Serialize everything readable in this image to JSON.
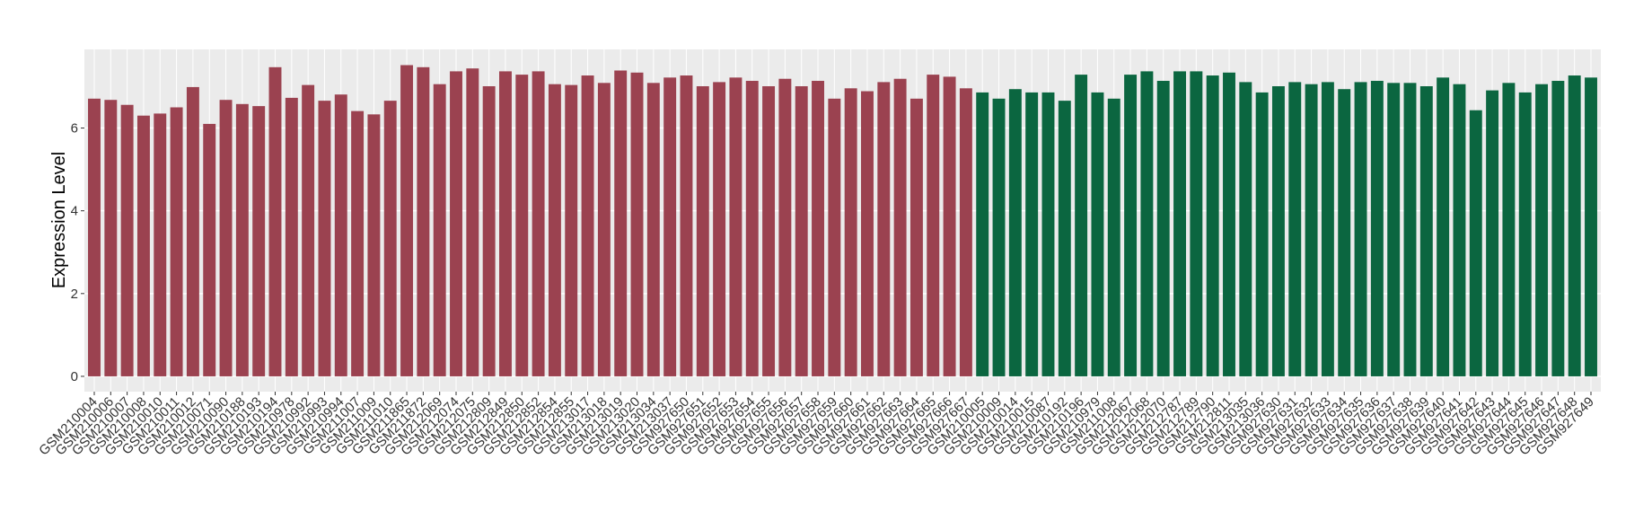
{
  "chart_data": {
    "type": "bar",
    "y_label": "Expression Level",
    "ylim": [
      -0.37,
      7.9
    ],
    "yticks": [
      0,
      2,
      4,
      6
    ],
    "grid": true,
    "series": [
      {
        "color": "#9b4250",
        "categories": [
          "GSM210004",
          "GSM210006",
          "GSM210007",
          "GSM210008",
          "GSM210010",
          "GSM210011",
          "GSM210012",
          "GSM210071",
          "GSM210090",
          "GSM210188",
          "GSM210193",
          "GSM210194",
          "GSM210978",
          "GSM210992",
          "GSM210993",
          "GSM210994",
          "GSM211007",
          "GSM211009",
          "GSM211010",
          "GSM211865",
          "GSM211872",
          "GSM212069",
          "GSM212074",
          "GSM212075",
          "GSM212809",
          "GSM212849",
          "GSM212850",
          "GSM212852",
          "GSM212854",
          "GSM212855",
          "GSM213017",
          "GSM213018",
          "GSM213019",
          "GSM213020",
          "GSM213034",
          "GSM213037",
          "GSM927650",
          "GSM927651",
          "GSM927652",
          "GSM927653",
          "GSM927654",
          "GSM927655",
          "GSM927656",
          "GSM927657",
          "GSM927658",
          "GSM927659",
          "GSM927660",
          "GSM927661",
          "GSM927662",
          "GSM927663",
          "GSM927664",
          "GSM927665",
          "GSM927666",
          "GSM927667"
        ],
        "values": [
          6.71,
          6.68,
          6.56,
          6.3,
          6.35,
          6.5,
          6.99,
          6.1,
          6.68,
          6.58,
          6.53,
          7.47,
          6.73,
          7.04,
          6.66,
          6.81,
          6.41,
          6.33,
          6.66,
          7.52,
          7.47,
          7.06,
          7.37,
          7.44,
          7.01,
          7.37,
          7.29,
          7.37,
          7.06,
          7.04,
          7.27,
          7.09,
          7.39,
          7.34,
          7.09,
          7.22,
          7.27,
          7.01,
          7.11,
          7.22,
          7.14,
          7.01,
          7.19,
          7.01,
          7.14,
          6.71,
          6.96,
          6.89,
          7.11,
          7.19,
          6.71,
          7.29,
          7.24,
          6.96
        ]
      },
      {
        "color": "#0b6640",
        "categories": [
          "GSM210005",
          "GSM210009",
          "GSM210014",
          "GSM210015",
          "GSM210087",
          "GSM210192",
          "GSM210196",
          "GSM210979",
          "GSM211008",
          "GSM212067",
          "GSM212068",
          "GSM212070",
          "GSM212787",
          "GSM212789",
          "GSM212790",
          "GSM212811",
          "GSM213035",
          "GSM213036",
          "GSM927630",
          "GSM927631",
          "GSM927632",
          "GSM927633",
          "GSM927634",
          "GSM927635",
          "GSM927636",
          "GSM927637",
          "GSM927638",
          "GSM927639",
          "GSM927640",
          "GSM927641",
          "GSM927642",
          "GSM927643",
          "GSM927644",
          "GSM927645",
          "GSM927646",
          "GSM927647",
          "GSM927648",
          "GSM927649"
        ],
        "values": [
          6.86,
          6.71,
          6.94,
          6.86,
          6.86,
          6.66,
          7.29,
          6.86,
          6.71,
          7.29,
          7.37,
          7.14,
          7.37,
          7.37,
          7.27,
          7.34,
          7.11,
          6.86,
          7.01,
          7.11,
          7.06,
          7.11,
          6.94,
          7.11,
          7.14,
          7.09,
          7.09,
          7.01,
          7.22,
          7.06,
          6.43,
          6.91,
          7.09,
          6.86,
          7.06,
          7.14,
          7.27,
          7.22
        ]
      }
    ]
  }
}
